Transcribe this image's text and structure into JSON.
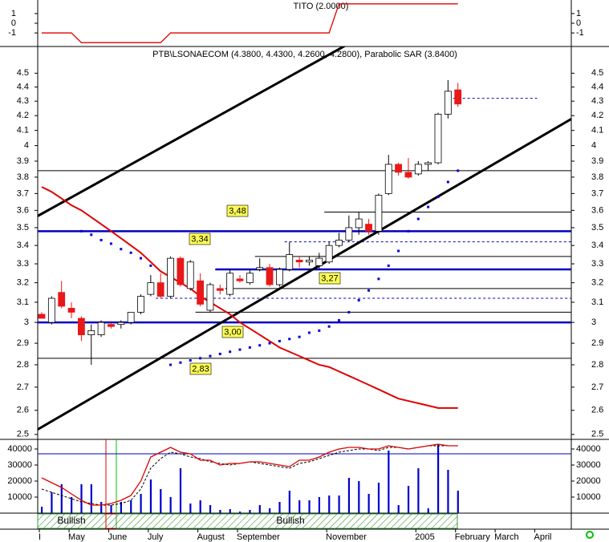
{
  "chart_data": [
    {
      "type": "line",
      "title": "TITO (2.0000)",
      "ylim": [
        -2.4,
        2.4
      ],
      "yticks": [
        1,
        0,
        -1
      ],
      "color": "#e00000",
      "values": [
        -1,
        -1,
        -1,
        -1,
        -2,
        -2,
        -2,
        -2,
        -2,
        -2,
        -2,
        -2,
        -2,
        -1,
        -1,
        -1,
        -1,
        -1,
        -1,
        -1,
        -1,
        -1,
        -1,
        -1,
        -1,
        -1,
        -1,
        -1,
        -1,
        -1,
        2,
        2,
        2,
        2,
        2,
        2,
        2,
        2,
        2,
        2,
        2,
        2,
        2
      ]
    },
    {
      "type": "candlestick",
      "title": "PTB\\LSONAECOM (4.3800, 4.4300, 4.2600, 4.2800), Parabolic SAR (3.8400)",
      "log_scale": true,
      "ylim": [
        2.48,
        4.7
      ],
      "yticks": [
        2.5,
        2.6,
        2.7,
        2.8,
        2.9,
        3.0,
        3.1,
        3.2,
        3.3,
        3.4,
        3.5,
        3.6,
        3.7,
        3.8,
        3.9,
        4.0,
        4.1,
        4.2,
        4.3,
        4.4,
        4.5
      ],
      "up_color": "#ffffff",
      "down_color": "#e81818",
      "open": [
        3.04,
        3.0,
        3.15,
        3.07,
        3.02,
        2.94,
        2.94,
        2.99,
        2.99,
        3.0,
        3.05,
        3.14,
        3.2,
        3.13,
        3.33,
        3.17,
        3.21,
        3.06,
        3.17,
        3.14,
        3.22,
        3.2,
        3.27,
        3.28,
        3.19,
        3.27,
        3.32,
        3.31,
        3.29,
        3.31,
        3.4,
        3.43,
        3.5,
        3.52,
        3.48,
        3.7,
        3.88,
        3.83,
        3.82,
        3.88,
        3.89,
        4.21,
        4.38
      ],
      "high": [
        3.05,
        3.13,
        3.21,
        3.1,
        3.03,
        2.99,
        3.01,
        3.0,
        3.01,
        3.05,
        3.14,
        3.24,
        3.25,
        3.34,
        3.34,
        3.32,
        3.25,
        3.2,
        3.19,
        3.27,
        3.24,
        3.27,
        3.33,
        3.3,
        3.28,
        3.42,
        3.34,
        3.34,
        3.36,
        3.42,
        3.47,
        3.57,
        3.59,
        3.55,
        3.7,
        3.94,
        3.89,
        3.92,
        3.9,
        3.9,
        4.22,
        4.45,
        4.43
      ],
      "low": [
        3.02,
        2.99,
        3.07,
        3.02,
        2.91,
        2.8,
        2.93,
        2.97,
        2.97,
        2.99,
        3.04,
        3.13,
        3.12,
        3.12,
        3.18,
        3.16,
        3.08,
        3.05,
        3.14,
        3.13,
        3.2,
        3.19,
        3.26,
        3.18,
        3.18,
        3.26,
        3.28,
        3.29,
        3.27,
        3.3,
        3.39,
        3.42,
        3.46,
        3.46,
        3.46,
        3.69,
        3.81,
        3.79,
        3.81,
        3.84,
        3.88,
        4.18,
        4.26
      ],
      "close": [
        3.02,
        3.12,
        3.08,
        3.05,
        2.94,
        2.96,
        3.0,
        2.98,
        3.0,
        3.05,
        3.13,
        3.2,
        3.13,
        3.33,
        3.19,
        3.31,
        3.09,
        3.19,
        3.16,
        3.25,
        3.21,
        3.25,
        3.28,
        3.19,
        3.27,
        3.35,
        3.31,
        3.32,
        3.33,
        3.4,
        3.43,
        3.5,
        3.55,
        3.48,
        3.69,
        3.88,
        3.83,
        3.8,
        3.88,
        3.89,
        4.21,
        4.37,
        4.28
      ],
      "sar": {
        "color": "#0000e0",
        "values": [
          null,
          null,
          null,
          null,
          3.48,
          3.46,
          3.43,
          3.41,
          3.38,
          3.36,
          3.33,
          3.29,
          null,
          2.8,
          2.81,
          2.82,
          2.83,
          2.84,
          2.85,
          2.86,
          2.87,
          2.88,
          2.89,
          2.9,
          2.91,
          2.92,
          2.93,
          2.95,
          2.96,
          2.98,
          3.01,
          3.05,
          3.11,
          3.16,
          3.22,
          3.29,
          3.37,
          3.48,
          3.55,
          3.62,
          3.68,
          3.77,
          3.84
        ]
      },
      "ma": {
        "color": "#e00000",
        "values": [
          3.74,
          3.71,
          3.67,
          3.63,
          3.6,
          3.56,
          3.52,
          3.48,
          3.44,
          3.4,
          3.36,
          3.31,
          3.26,
          3.23,
          3.2,
          3.17,
          3.13,
          3.1,
          3.07,
          3.04,
          3.0,
          2.97,
          2.94,
          2.91,
          2.88,
          2.86,
          2.84,
          2.82,
          2.8,
          2.79,
          2.77,
          2.75,
          2.73,
          2.71,
          2.69,
          2.67,
          2.65,
          2.64,
          2.63,
          2.62,
          2.61,
          2.61,
          2.61
        ]
      },
      "trendlines": [
        {
          "from": [
            0,
            3.58
          ],
          "to": [
            30,
            4.68
          ]
        },
        {
          "from": [
            0,
            2.53
          ],
          "to": [
            53,
            4.16
          ]
        }
      ],
      "hlines": [
        {
          "value": 3.84,
          "start": 0,
          "style": "thin",
          "color": "#000000"
        },
        {
          "value": 3.48,
          "start": 0,
          "style": "thick",
          "color": "#0000c0"
        },
        {
          "value": 3.0,
          "start": 0,
          "style": "thick",
          "color": "#0000c0"
        },
        {
          "value": 2.83,
          "start": 0,
          "style": "thin",
          "color": "#000000"
        },
        {
          "value": 3.59,
          "start": 29,
          "style": "thin",
          "color": "#000000"
        },
        {
          "value": 3.42,
          "start": 25,
          "style": "dashed",
          "color": "#0000c0"
        },
        {
          "value": 3.34,
          "start": 22,
          "style": "thin",
          "color": "#000000"
        },
        {
          "value": 3.27,
          "start": 18,
          "style": "thick",
          "color": "#0000c0"
        },
        {
          "value": 3.17,
          "start": 19,
          "style": "thin",
          "color": "#000000"
        },
        {
          "value": 3.12,
          "start": 12,
          "style": "dashed",
          "color": "#0000c0"
        },
        {
          "value": 3.05,
          "start": 16,
          "style": "thin",
          "color": "#000000"
        },
        {
          "value": 4.32,
          "start": 42,
          "end": 50,
          "style": "dashed",
          "color": "#0000c0"
        }
      ],
      "labels": [
        "3,48",
        "3,34",
        "3,27",
        "3,00",
        "2,83"
      ]
    },
    {
      "type": "bar",
      "ylim": [
        0,
        46000
      ],
      "yticks": [
        40000,
        30000,
        20000,
        10000
      ],
      "color": "#0000d0",
      "categories": [
        "I",
        null,
        null,
        "May",
        null,
        null,
        null,
        "June",
        null,
        null,
        null,
        "July",
        null,
        null,
        null,
        null,
        "August",
        null,
        null,
        null,
        "September",
        null,
        null,
        null,
        null,
        null,
        null,
        null,
        null,
        "November",
        null,
        null,
        null,
        null,
        null,
        null,
        null,
        null,
        "2005",
        null,
        null,
        null,
        "February",
        null,
        null,
        null,
        "March",
        null,
        null,
        null,
        "April",
        null,
        null,
        null
      ],
      "values": [
        4000,
        13000,
        18000,
        10000,
        18000,
        18000,
        7000,
        5000,
        7000,
        8000,
        12000,
        21000,
        15000,
        10000,
        28000,
        6000,
        8000,
        5000,
        2000,
        2500,
        1000,
        2000,
        5000,
        3000,
        7000,
        14000,
        8000,
        8000,
        10000,
        11000,
        11000,
        22000,
        20000,
        12000,
        19000,
        39000,
        5000,
        17000,
        28000,
        3000,
        43000,
        27000,
        14000,
        null,
        null,
        null,
        null,
        null,
        null,
        null,
        null,
        null,
        null,
        null
      ],
      "ma_fast": {
        "color": "#e00000",
        "values": [
          22000,
          19000,
          16000,
          12000,
          8000,
          5000,
          5000,
          6000,
          8000,
          11000,
          20000,
          35000,
          38000,
          41000,
          38000,
          37000,
          33000,
          33000,
          30000,
          31000,
          31000,
          32000,
          32000,
          31000,
          30000,
          29000,
          33000,
          33000,
          35000,
          38000,
          40000,
          41000,
          41000,
          40000,
          40000,
          42000,
          41000,
          40000,
          41000,
          42000,
          43000,
          42000,
          42000
        ]
      },
      "ma_slow": {
        "color": "#000000",
        "values": [
          15000,
          13000,
          11000,
          9000,
          7000,
          6000,
          5000,
          5000,
          6000,
          8000,
          15000,
          28000,
          34000,
          38000,
          37000,
          35000,
          34000,
          32000,
          31000,
          30000,
          31000,
          32000,
          31000,
          30000,
          29000,
          28000,
          31000,
          32000,
          34000,
          36000,
          38000,
          39000,
          40000,
          40000,
          39000,
          41000,
          41000,
          40000,
          41000,
          42000,
          42000,
          42000,
          42000
        ]
      },
      "hline": {
        "value": 37000,
        "color": "#0000c0"
      },
      "signals": [
        "Bullish",
        "Bullish"
      ]
    }
  ]
}
